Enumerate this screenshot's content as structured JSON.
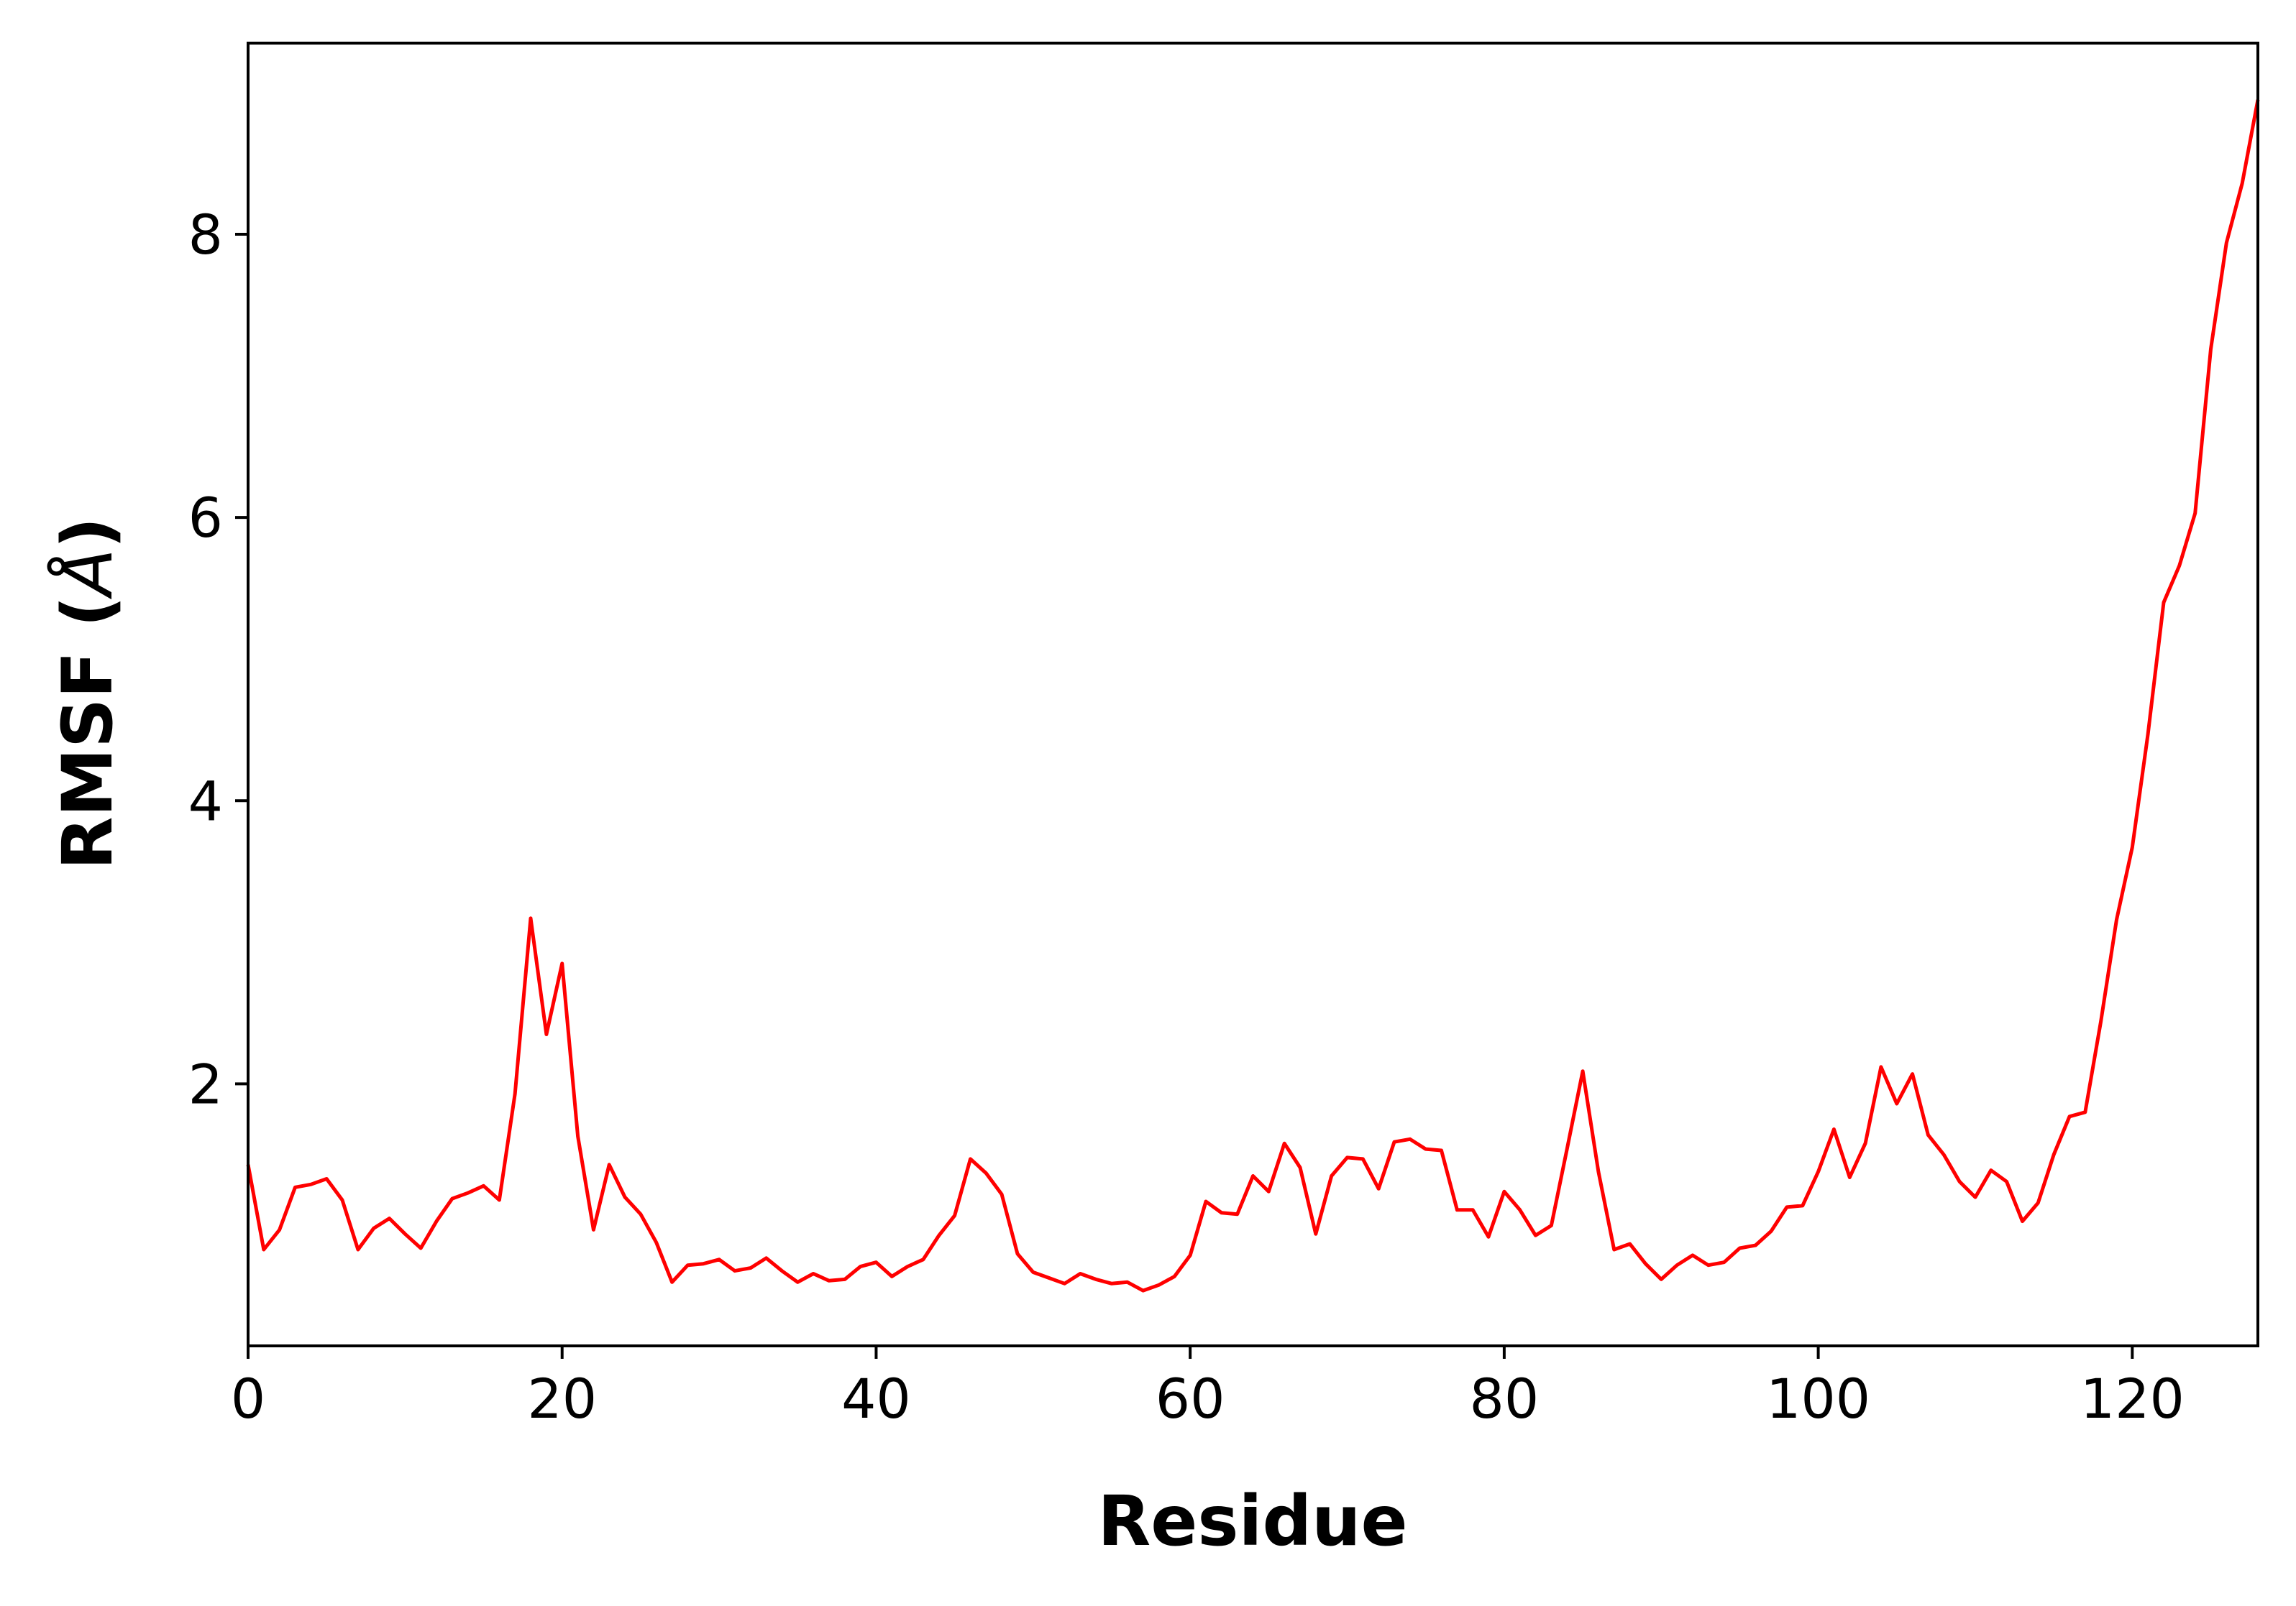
{
  "chart_data": {
    "type": "line",
    "title": "",
    "xlabel": "Residue",
    "ylabel": {
      "prefix": "RMSF (",
      "unit": "Å",
      "suffix": ")"
    },
    "xlim": [
      0,
      128
    ],
    "ylim": [
      0.15,
      9.35
    ],
    "xticks": [
      0,
      20,
      40,
      60,
      80,
      100,
      120
    ],
    "yticks": [
      2,
      4,
      6,
      8
    ],
    "grid": false,
    "legend": "none",
    "line_color": "#ff0000",
    "series": [
      {
        "x": [
          0,
          1,
          2,
          3,
          4,
          5,
          6,
          7,
          8,
          9,
          10,
          11,
          12,
          13,
          14,
          15,
          16,
          17,
          18,
          19,
          20,
          21,
          22,
          23,
          24,
          25,
          26,
          27,
          28,
          29,
          30,
          31,
          32,
          33,
          34,
          35,
          36,
          37,
          38,
          39,
          40,
          41,
          42,
          43,
          44,
          45,
          46,
          47,
          48,
          49,
          50,
          51,
          52,
          53,
          54,
          55,
          56,
          57,
          58,
          59,
          60,
          61,
          62,
          63,
          64,
          65,
          66,
          67,
          68,
          69,
          70,
          71,
          72,
          73,
          74,
          75,
          76,
          77,
          78,
          79,
          80,
          81,
          82,
          83,
          84,
          85,
          86,
          87,
          88,
          89,
          90,
          91,
          92,
          93,
          94,
          95,
          96,
          97,
          98,
          99,
          100,
          101,
          102,
          103,
          104,
          105,
          106,
          107,
          108,
          109,
          110,
          111,
          112,
          113,
          114,
          115,
          116,
          117,
          118,
          119,
          120,
          121,
          122,
          123,
          124,
          125,
          126,
          127,
          128
        ],
        "y": [
          1.43,
          0.83,
          0.97,
          1.27,
          1.29,
          1.33,
          1.18,
          0.83,
          0.98,
          1.05,
          0.94,
          0.84,
          1.03,
          1.19,
          1.23,
          1.28,
          1.18,
          1.93,
          3.17,
          2.35,
          2.85,
          1.63,
          0.97,
          1.43,
          1.2,
          1.08,
          0.88,
          0.6,
          0.72,
          0.73,
          0.76,
          0.68,
          0.7,
          0.77,
          0.68,
          0.6,
          0.66,
          0.61,
          0.62,
          0.71,
          0.74,
          0.64,
          0.71,
          0.76,
          0.93,
          1.07,
          1.47,
          1.37,
          1.22,
          0.8,
          0.67,
          0.63,
          0.59,
          0.66,
          0.62,
          0.59,
          0.6,
          0.54,
          0.58,
          0.64,
          0.79,
          1.17,
          1.09,
          1.08,
          1.35,
          1.24,
          1.58,
          1.41,
          0.94,
          1.35,
          1.48,
          1.47,
          1.26,
          1.59,
          1.61,
          1.54,
          1.53,
          1.11,
          1.11,
          0.92,
          1.24,
          1.11,
          0.93,
          1.0,
          1.54,
          2.09,
          1.38,
          0.83,
          0.87,
          0.73,
          0.62,
          0.72,
          0.79,
          0.72,
          0.74,
          0.84,
          0.86,
          0.96,
          1.13,
          1.14,
          1.38,
          1.68,
          1.34,
          1.58,
          2.12,
          1.86,
          2.07,
          1.64,
          1.5,
          1.31,
          1.2,
          1.39,
          1.31,
          1.03,
          1.16,
          1.5,
          1.77,
          1.8,
          2.44,
          3.16,
          3.67,
          4.47,
          5.4,
          5.66,
          6.03,
          7.19,
          7.94,
          8.36,
          8.95
        ]
      }
    ]
  }
}
